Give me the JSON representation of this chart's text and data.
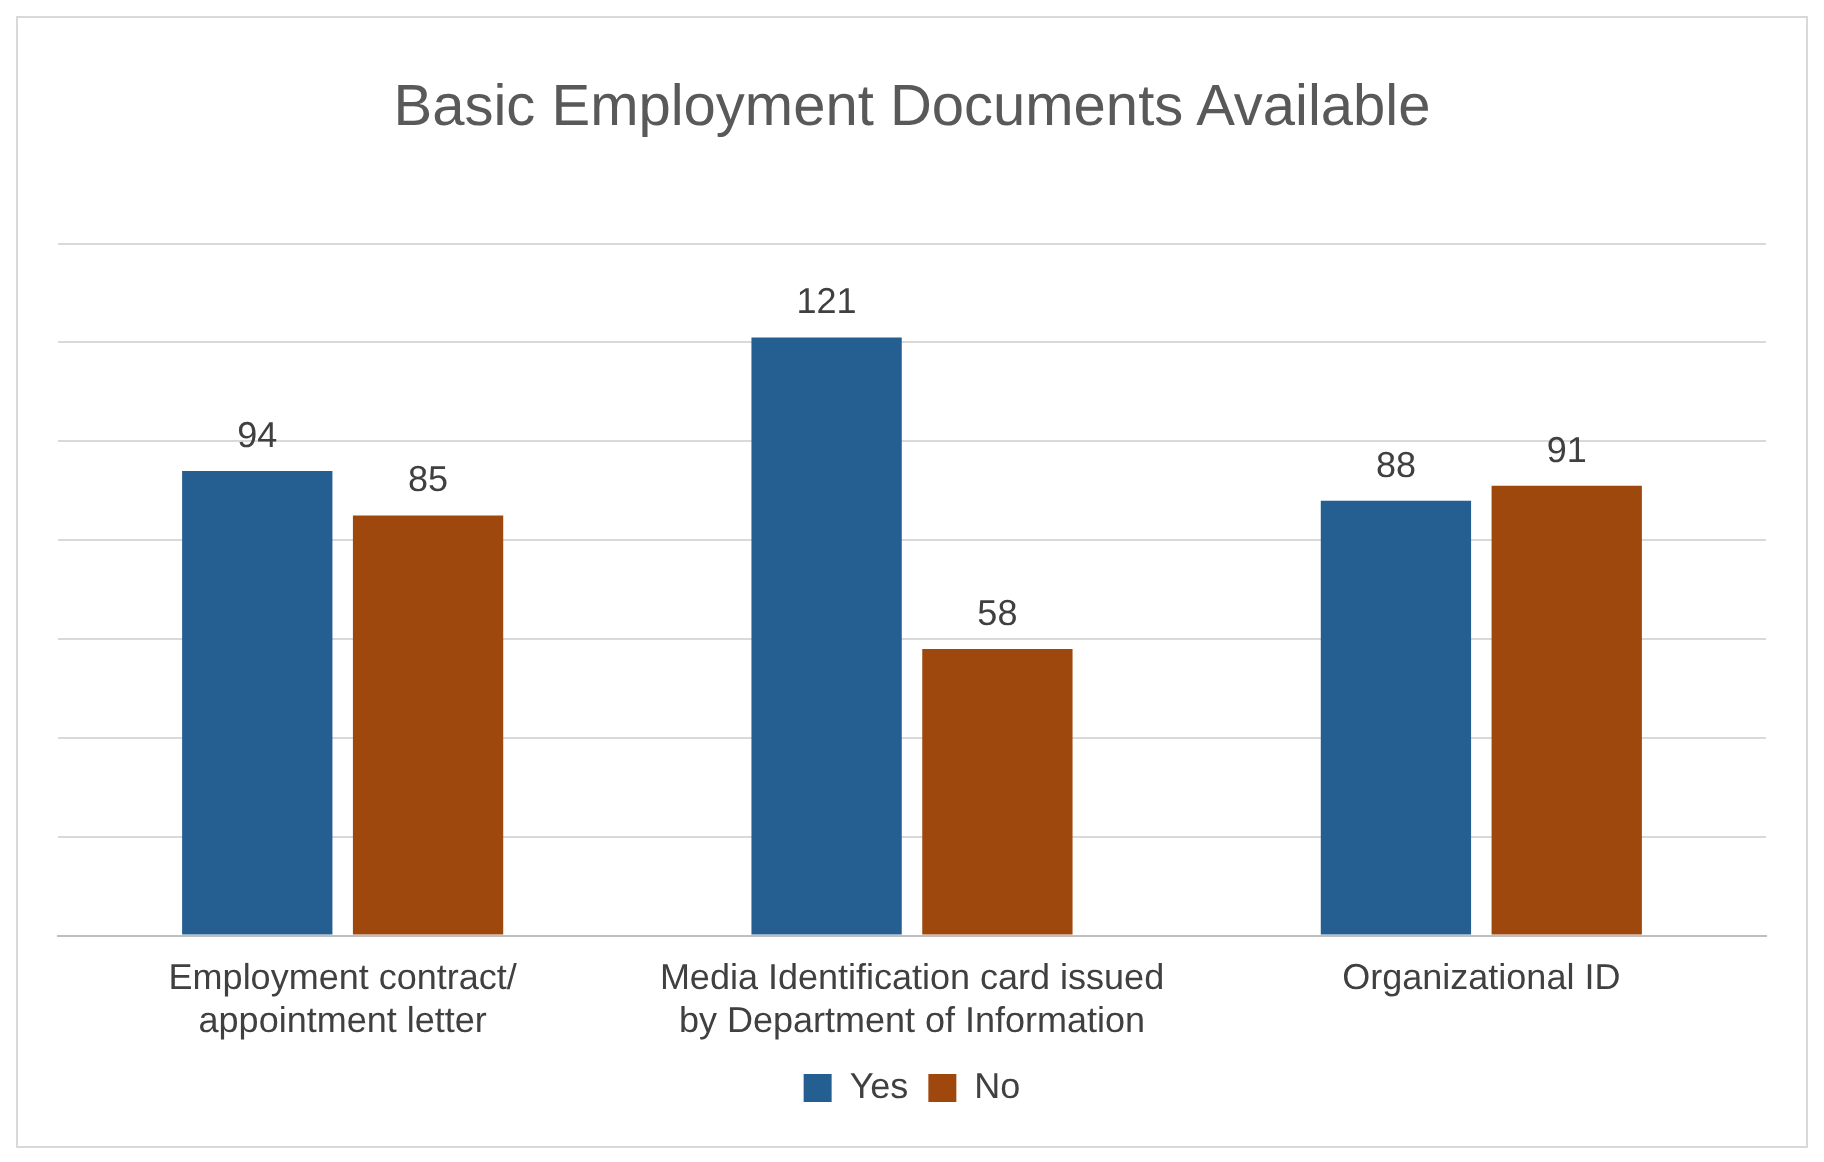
{
  "chart_data": {
    "type": "bar",
    "title": "Basic Employment Documents Available",
    "categories": [
      "Employment contract/ appointment letter",
      "Media Identification card issued by Department of Information",
      "Organizational ID"
    ],
    "series": [
      {
        "name": "Yes",
        "color": "#255e91",
        "values": [
          94,
          121,
          88
        ]
      },
      {
        "name": "No",
        "color": "#9e480e",
        "values": [
          85,
          58,
          91
        ]
      }
    ],
    "ylim": [
      0,
      140
    ],
    "yticks": [
      {
        "value": 0,
        "label": null
      },
      {
        "value": 20,
        "label": null
      },
      {
        "value": 40,
        "label": null
      },
      {
        "value": 60,
        "label": null
      },
      {
        "value": 80,
        "label": null
      },
      {
        "value": 100,
        "label": null
      },
      {
        "value": 120,
        "label": null
      },
      {
        "value": 140,
        "label": null
      }
    ],
    "tick_labels": "x",
    "grid": "y",
    "legend": "bottom",
    "data_labels": true
  }
}
